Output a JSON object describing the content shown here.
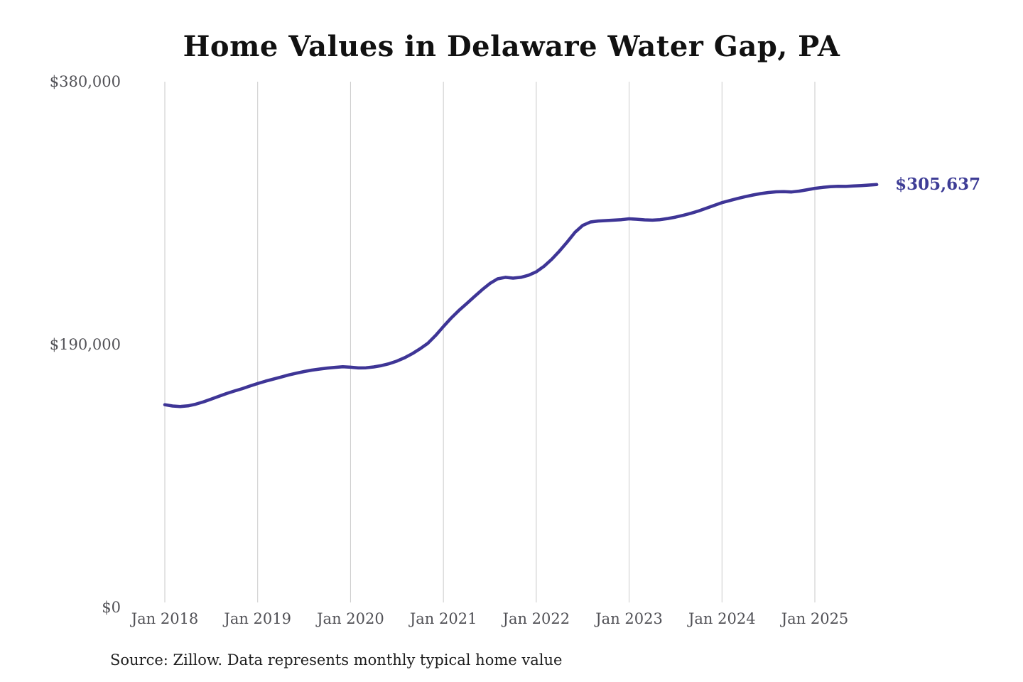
{
  "title": "Home Values in Delaware Water Gap, PA",
  "source_note": "Source: Zillow. Data represents monthly typical home value",
  "colors": {
    "line": "#3e3596",
    "end_label": "#3e3d96",
    "grid": "#cacaca",
    "tick_text": "#515156",
    "title_text": "#111111",
    "source_text": "#1e1e1e",
    "background": "#ffffff"
  },
  "chart_data": {
    "type": "line",
    "title": "Home Values in Delaware Water Gap, PA",
    "xlabel": "",
    "ylabel": "",
    "ylim": [
      0,
      380000
    ],
    "grid": "vertical-only",
    "legend": "none",
    "frequency": "monthly",
    "start_month": "Jan 2018",
    "end_month": "Sep 2025",
    "x_tick_labels": [
      "Jan 2018",
      "Jan 2019",
      "Jan 2020",
      "Jan 2021",
      "Jan 2022",
      "Jan 2023",
      "Jan 2024",
      "Jan 2025"
    ],
    "x_tick_month_indices": [
      0,
      12,
      24,
      36,
      48,
      60,
      72,
      84
    ],
    "y_ticks": [
      {
        "label": "$0",
        "value": 0
      },
      {
        "label": "$190,000",
        "value": 190000
      },
      {
        "label": "$380,000",
        "value": 380000
      }
    ],
    "series_name": "Typical home value",
    "values": [
      146500,
      145600,
      145200,
      145700,
      146900,
      148600,
      150600,
      152600,
      154600,
      156400,
      158100,
      160000,
      161800,
      163500,
      165000,
      166500,
      168000,
      169300,
      170500,
      171500,
      172300,
      173000,
      173500,
      174000,
      173600,
      173100,
      173200,
      173800,
      174800,
      176200,
      178100,
      180500,
      183500,
      187000,
      191000,
      196600,
      203000,
      209100,
      214600,
      219600,
      224600,
      229600,
      234100,
      237500,
      238600,
      238000,
      238600,
      240100,
      242600,
      246600,
      251600,
      257600,
      264100,
      271100,
      276100,
      278600,
      279300,
      279600,
      279900,
      280300,
      280900,
      280600,
      280100,
      279900,
      280300,
      281100,
      282100,
      283400,
      284900,
      286600,
      288600,
      290600,
      292600,
      294100,
      295600,
      296900,
      298100,
      299100,
      299900,
      300400,
      300500,
      300300,
      300900,
      301900,
      302900,
      303600,
      304100,
      304400,
      304300,
      304600,
      304900,
      305300,
      305637
    ],
    "latest_value": 305637,
    "latest_value_label": "$305,637"
  }
}
